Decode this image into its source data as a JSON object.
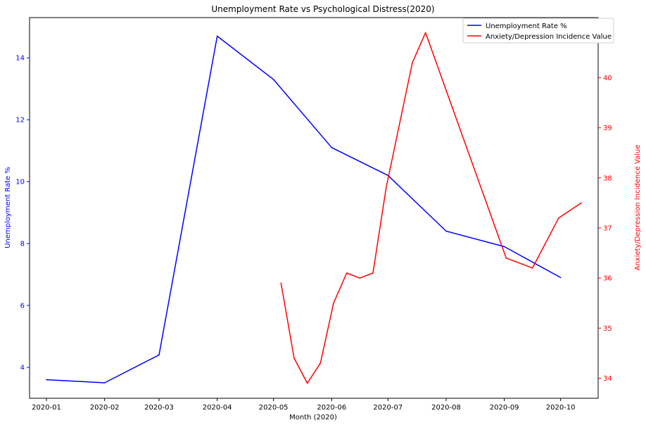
{
  "chart_data": {
    "type": "line",
    "title": "Unemployment Rate vs Psychological Distress(2020)",
    "xlabel": "Month (2020)",
    "ylabel_left": "Unemployment Rate %",
    "ylabel_right": "Anxiety/Depression Incidence Value",
    "x_ticks": [
      "2020-01",
      "2020-02",
      "2020-03",
      "2020-04",
      "2020-05",
      "2020-06",
      "2020-07",
      "2020-08",
      "2020-09",
      "2020-10"
    ],
    "y_left_ticks": [
      4,
      6,
      8,
      10,
      12,
      14
    ],
    "y_right_ticks": [
      34,
      35,
      36,
      37,
      38,
      39,
      40,
      41
    ],
    "x_range": [
      "2019-12-23",
      "2020-10-21"
    ],
    "y_left_range": [
      3.0,
      15.3
    ],
    "y_right_range": [
      33.6,
      41.2
    ],
    "legend_position": "top-right",
    "grid": false,
    "colors": {
      "left_axis": "#0000ff",
      "right_axis": "#ff0000",
      "unemployment": "#0000ff",
      "anxiety": "#ff0000"
    },
    "series": [
      {
        "name": "Unemployment Rate %",
        "axis": "left",
        "points": [
          {
            "x": "2020-01-01",
            "y": 3.6
          },
          {
            "x": "2020-02-01",
            "y": 3.5
          },
          {
            "x": "2020-03-01",
            "y": 4.4
          },
          {
            "x": "2020-04-01",
            "y": 14.7
          },
          {
            "x": "2020-05-01",
            "y": 13.3
          },
          {
            "x": "2020-06-01",
            "y": 11.1
          },
          {
            "x": "2020-07-01",
            "y": 10.2
          },
          {
            "x": "2020-08-01",
            "y": 8.4
          },
          {
            "x": "2020-09-01",
            "y": 7.9
          },
          {
            "x": "2020-10-01",
            "y": 6.9
          }
        ]
      },
      {
        "name": "Anxiety/Depression Incidence Value",
        "axis": "right",
        "points": [
          {
            "x": "2020-05-05",
            "y": 35.9
          },
          {
            "x": "2020-05-12",
            "y": 34.4
          },
          {
            "x": "2020-05-19",
            "y": 33.9
          },
          {
            "x": "2020-05-26",
            "y": 34.3
          },
          {
            "x": "2020-06-02",
            "y": 35.5
          },
          {
            "x": "2020-06-09",
            "y": 36.1
          },
          {
            "x": "2020-06-16",
            "y": 36.0
          },
          {
            "x": "2020-06-23",
            "y": 36.1
          },
          {
            "x": "2020-06-30",
            "y": 37.8
          },
          {
            "x": "2020-07-14",
            "y": 40.3
          },
          {
            "x": "2020-07-21",
            "y": 40.9
          },
          {
            "x": "2020-09-02",
            "y": 36.4
          },
          {
            "x": "2020-09-16",
            "y": 36.2
          },
          {
            "x": "2020-09-30",
            "y": 37.2
          },
          {
            "x": "2020-10-12",
            "y": 37.5
          }
        ]
      }
    ]
  }
}
